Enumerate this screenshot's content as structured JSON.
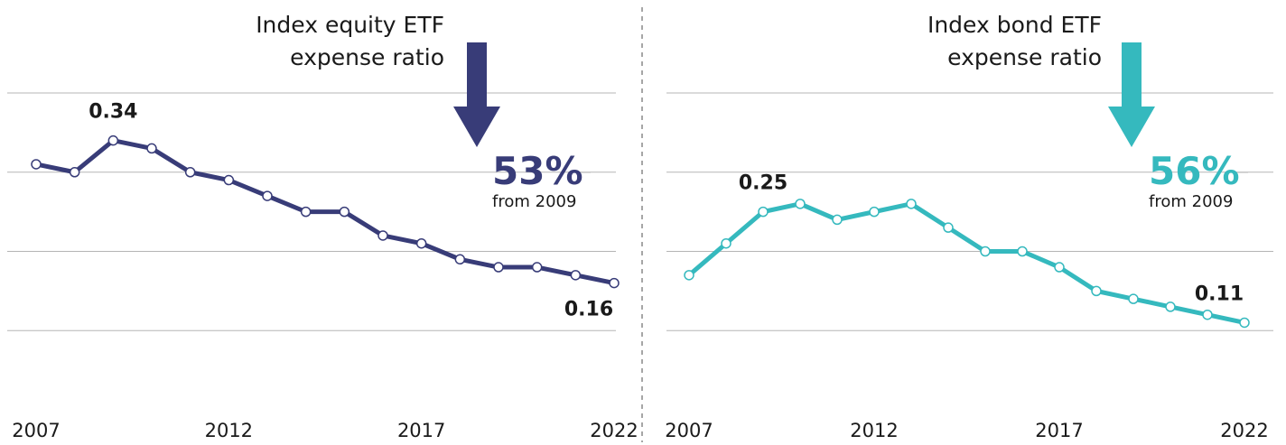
{
  "chart_data": [
    {
      "type": "line",
      "title": [
        "Index equity ETF",
        "expense ratio"
      ],
      "x": [
        2007,
        2008,
        2009,
        2010,
        2011,
        2012,
        2013,
        2014,
        2015,
        2016,
        2017,
        2018,
        2019,
        2020,
        2021,
        2022
      ],
      "series": [
        {
          "name": "Index equity ETF expense ratio",
          "color": "#383c78",
          "values": [
            0.31,
            0.3,
            0.34,
            0.33,
            0.3,
            0.29,
            0.27,
            0.25,
            0.25,
            0.22,
            0.21,
            0.19,
            0.18,
            0.18,
            0.17,
            0.16
          ],
          "value_labels": [
            null,
            null,
            "0.34",
            null,
            null,
            null,
            null,
            null,
            null,
            null,
            null,
            null,
            null,
            null,
            null,
            "0.16"
          ]
        }
      ],
      "change_label": "53%",
      "change_note": "from 2009",
      "xlim": [
        2007,
        2022
      ],
      "xticks": [
        2007,
        2012,
        2017,
        2022
      ],
      "ylim": [
        0,
        0.4
      ],
      "yticks": [
        0.1,
        0.2,
        0.3,
        0.4
      ],
      "grid": true
    },
    {
      "type": "line",
      "title": [
        "Index bond ETF",
        "expense ratio"
      ],
      "x": [
        2007,
        2008,
        2009,
        2010,
        2011,
        2012,
        2013,
        2014,
        2015,
        2016,
        2017,
        2018,
        2019,
        2020,
        2021,
        2022
      ],
      "series": [
        {
          "name": "Index bond ETF expense ratio",
          "color": "#35b9be",
          "values": [
            0.17,
            0.21,
            0.25,
            0.26,
            0.24,
            0.25,
            0.26,
            0.23,
            0.2,
            0.2,
            0.18,
            0.15,
            0.14,
            0.13,
            0.12,
            0.11
          ],
          "value_labels": [
            null,
            null,
            "0.25",
            null,
            null,
            null,
            null,
            null,
            null,
            null,
            null,
            null,
            null,
            null,
            null,
            "0.11"
          ]
        }
      ],
      "change_label": "56%",
      "change_note": "from 2009",
      "xlim": [
        2007,
        2022
      ],
      "xticks": [
        2007,
        2012,
        2017,
        2022
      ],
      "ylim": [
        0,
        0.4
      ],
      "yticks": [
        0.1,
        0.2,
        0.3,
        0.4
      ],
      "grid": true
    }
  ]
}
